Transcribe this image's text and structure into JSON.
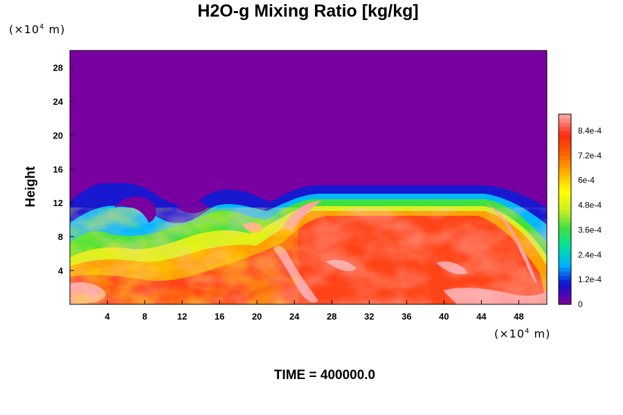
{
  "chart_data": {
    "type": "heatmap",
    "title": "H2O-g Mixing Ratio [kg/kg]",
    "ylabel": "Height",
    "xlabel": "",
    "y_unit_prefix": "(×10",
    "y_unit_exp": "4",
    "y_unit_suffix": " m)",
    "x_unit_prefix": "(×10",
    "x_unit_exp": "4",
    "x_unit_suffix": " m)",
    "xlim": [
      0,
      51
    ],
    "ylim": [
      0,
      30
    ],
    "x_ticks": [
      "4",
      "8",
      "12",
      "16",
      "20",
      "24",
      "28",
      "32",
      "36",
      "40",
      "44",
      "48"
    ],
    "y_ticks": [
      "4",
      "8",
      "12",
      "16",
      "20",
      "24",
      "28"
    ],
    "colorbar": {
      "min": 0,
      "max": 0.00092,
      "labels": [
        "0",
        "1.2e-4",
        "2.4e-4",
        "3.6e-4",
        "4.8e-4",
        "6e-4",
        "7.2e-4",
        "8.4e-4"
      ]
    },
    "field_description_values": {
      "background_value": 0,
      "moist_layer_top_left_height": 13,
      "moist_layer_top_right_height": 12.5
    },
    "colors": {
      "stops": [
        "#7800a0",
        "#1010d0",
        "#00b0ff",
        "#00e0a0",
        "#40e040",
        "#d0f020",
        "#ffff00",
        "#ffb000",
        "#ff6000",
        "#ff2a10",
        "#ffa0a0"
      ]
    }
  },
  "footer": {
    "time_label": "TIME = 400000.0"
  }
}
